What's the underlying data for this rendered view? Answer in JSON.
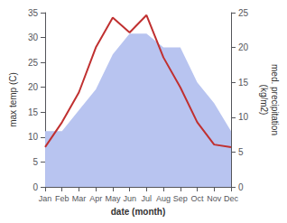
{
  "chart_data": {
    "type": "line",
    "xlabel": "date (month)",
    "ylabel": "max temp (C)",
    "y2label": "med. precipitation\n(kg/m2)",
    "categories": [
      "Jan",
      "Feb",
      "Mar",
      "Apr",
      "May",
      "Jun",
      "Jul",
      "Aug",
      "Sep",
      "Oct",
      "Nov",
      "Dec"
    ],
    "series": [
      {
        "type": "area",
        "color": "#b8c4f0",
        "axis": "y2",
        "values": [
          8,
          8,
          11,
          14,
          19,
          22,
          22,
          20,
          20,
          15,
          12,
          8
        ]
      },
      {
        "type": "line",
        "color": "#c03030",
        "axis": "y",
        "values": [
          8,
          13,
          19,
          28,
          34,
          31,
          34.5,
          26,
          20,
          13,
          8.5,
          8
        ]
      }
    ],
    "ylim": [
      0,
      35
    ],
    "yticks": [
      0,
      5,
      10,
      15,
      20,
      25,
      30,
      35
    ],
    "y2lim": [
      0,
      25
    ],
    "y2ticks": [
      0,
      5,
      10,
      15,
      20,
      25
    ],
    "grid": false
  }
}
